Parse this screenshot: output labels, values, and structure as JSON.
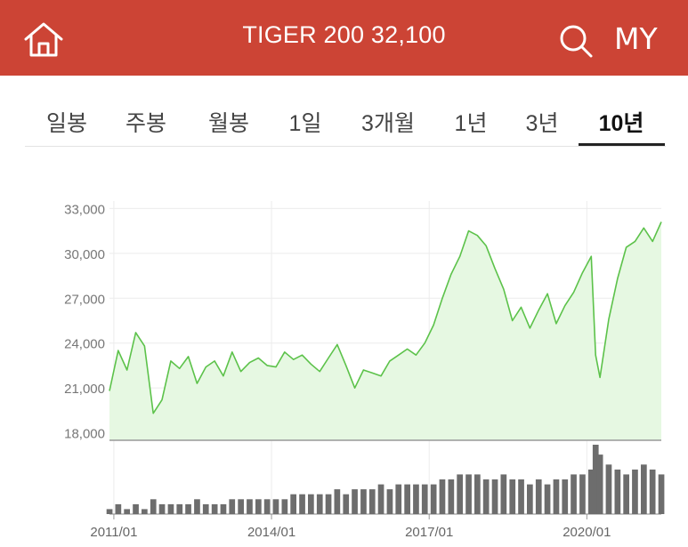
{
  "header": {
    "title": "TIGER 200 32,100",
    "home_icon": "home-icon",
    "search_icon": "search-icon",
    "my_label": "MY",
    "color": "#cc4435"
  },
  "tabs": [
    {
      "label": "일봉",
      "active": false
    },
    {
      "label": "주봉",
      "active": false
    },
    {
      "label": "월봉",
      "active": false
    },
    {
      "label": "1일",
      "active": false
    },
    {
      "label": "3개월",
      "active": false
    },
    {
      "label": "1년",
      "active": false
    },
    {
      "label": "3년",
      "active": false
    },
    {
      "label": "10년",
      "active": true
    }
  ],
  "chart_data": {
    "type": "area",
    "line_color": "#5cc24a",
    "fill_color": "#e6f8e2",
    "ylim": [
      17500,
      33500
    ],
    "yticks": [
      {
        "value": 18000,
        "label": "18,000"
      },
      {
        "value": 21000,
        "label": "21,000"
      },
      {
        "value": 24000,
        "label": "24,000"
      },
      {
        "value": 27000,
        "label": "27,000"
      },
      {
        "value": 30000,
        "label": "30,000"
      },
      {
        "value": 33000,
        "label": "33,000"
      }
    ],
    "xlim": [
      "2010-12",
      "2021-06"
    ],
    "xticks": [
      {
        "value": "2011-01",
        "label": "2011/01"
      },
      {
        "value": "2014-01",
        "label": "2014/01"
      },
      {
        "value": "2017-01",
        "label": "2017/01"
      },
      {
        "value": "2020-01",
        "label": "2020/01"
      }
    ],
    "grid": true,
    "x": [
      "2010-12",
      "2011-02",
      "2011-04",
      "2011-06",
      "2011-08",
      "2011-10",
      "2011-12",
      "2012-02",
      "2012-04",
      "2012-06",
      "2012-08",
      "2012-10",
      "2012-12",
      "2013-02",
      "2013-04",
      "2013-06",
      "2013-08",
      "2013-10",
      "2013-12",
      "2014-02",
      "2014-04",
      "2014-06",
      "2014-08",
      "2014-10",
      "2014-12",
      "2015-02",
      "2015-04",
      "2015-06",
      "2015-08",
      "2015-10",
      "2015-12",
      "2016-02",
      "2016-04",
      "2016-06",
      "2016-08",
      "2016-10",
      "2016-12",
      "2017-02",
      "2017-04",
      "2017-06",
      "2017-08",
      "2017-10",
      "2017-12",
      "2018-02",
      "2018-04",
      "2018-06",
      "2018-08",
      "2018-10",
      "2018-12",
      "2019-02",
      "2019-04",
      "2019-06",
      "2019-08",
      "2019-10",
      "2019-12",
      "2020-02",
      "2020-03",
      "2020-04",
      "2020-06",
      "2020-08",
      "2020-10",
      "2020-12",
      "2021-02",
      "2021-04",
      "2021-06"
    ],
    "price": [
      20800,
      23500,
      22200,
      24700,
      23800,
      19300,
      20200,
      22800,
      22300,
      23100,
      21300,
      22400,
      22800,
      21800,
      23400,
      22100,
      22700,
      23000,
      22500,
      22400,
      23400,
      22900,
      23200,
      22600,
      22100,
      23000,
      23900,
      22500,
      21000,
      22200,
      22000,
      21800,
      22800,
      23200,
      23600,
      23200,
      24000,
      25200,
      27000,
      28600,
      29800,
      31500,
      31200,
      30500,
      29000,
      27600,
      25500,
      26400,
      25000,
      26200,
      27300,
      25300,
      26500,
      27400,
      28700,
      29800,
      23200,
      21700,
      25600,
      28300,
      30400,
      30800,
      31700,
      30800,
      32100
    ],
    "volume": [
      1,
      2,
      1,
      2,
      1,
      3,
      2,
      2,
      2,
      2,
      3,
      2,
      2,
      2,
      3,
      3,
      3,
      3,
      3,
      3,
      3,
      4,
      4,
      4,
      4,
      4,
      5,
      4,
      5,
      5,
      5,
      6,
      5,
      6,
      6,
      6,
      6,
      6,
      7,
      7,
      8,
      8,
      8,
      7,
      7,
      8,
      7,
      7,
      6,
      7,
      6,
      7,
      7,
      8,
      8,
      9,
      14,
      12,
      10,
      9,
      8,
      9,
      10,
      9,
      8
    ]
  }
}
